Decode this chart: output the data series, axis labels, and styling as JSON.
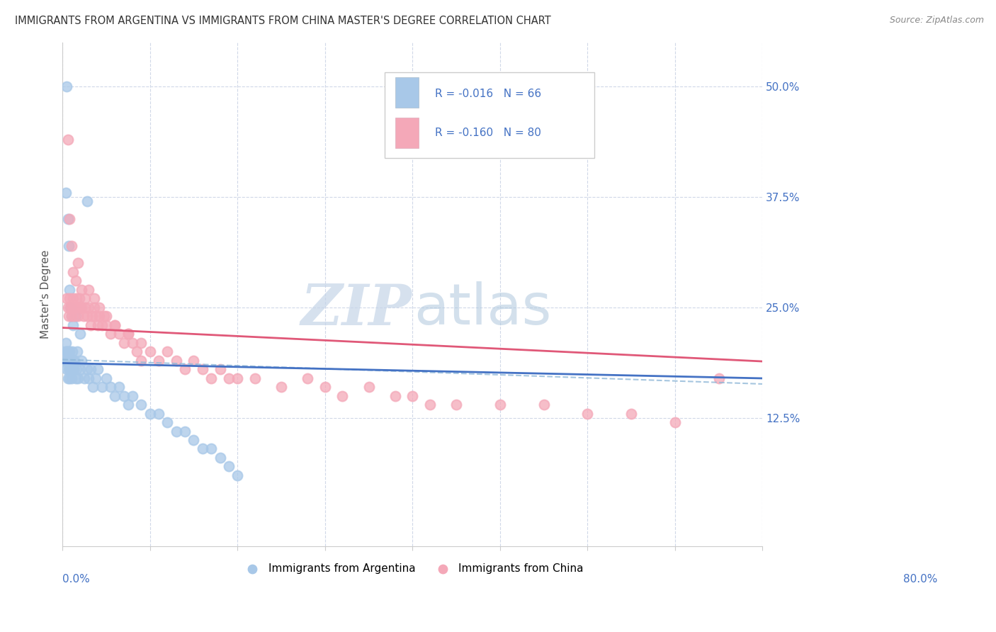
{
  "title": "IMMIGRANTS FROM ARGENTINA VS IMMIGRANTS FROM CHINA MASTER'S DEGREE CORRELATION CHART",
  "source": "Source: ZipAtlas.com",
  "ylabel": "Master's Degree",
  "ytick_values": [
    0.125,
    0.25,
    0.375,
    0.5
  ],
  "xlim": [
    0.0,
    0.8
  ],
  "ylim": [
    -0.02,
    0.55
  ],
  "argentina_color": "#a8c8e8",
  "china_color": "#f4a8b8",
  "argentina_line_color": "#4472c4",
  "china_line_color": "#e05878",
  "dash_line_color": "#90b8d8",
  "legend_text_color": "#4472c4",
  "argentina_x": [
    0.003,
    0.004,
    0.004,
    0.005,
    0.005,
    0.005,
    0.006,
    0.006,
    0.006,
    0.007,
    0.007,
    0.008,
    0.008,
    0.009,
    0.009,
    0.01,
    0.01,
    0.011,
    0.011,
    0.012,
    0.013,
    0.014,
    0.015,
    0.016,
    0.017,
    0.018,
    0.02,
    0.022,
    0.025,
    0.028,
    0.03,
    0.032,
    0.035,
    0.038,
    0.04,
    0.045,
    0.05,
    0.055,
    0.06,
    0.065,
    0.07,
    0.075,
    0.08,
    0.09,
    0.1,
    0.11,
    0.12,
    0.13,
    0.14,
    0.15,
    0.16,
    0.17,
    0.18,
    0.19,
    0.2,
    0.004,
    0.005,
    0.006,
    0.007,
    0.008,
    0.009,
    0.01,
    0.012,
    0.015,
    0.02,
    0.028
  ],
  "argentina_y": [
    0.19,
    0.2,
    0.21,
    0.18,
    0.19,
    0.2,
    0.17,
    0.19,
    0.2,
    0.18,
    0.19,
    0.17,
    0.2,
    0.18,
    0.19,
    0.17,
    0.19,
    0.18,
    0.2,
    0.19,
    0.18,
    0.19,
    0.17,
    0.18,
    0.2,
    0.17,
    0.18,
    0.19,
    0.17,
    0.18,
    0.17,
    0.18,
    0.16,
    0.17,
    0.18,
    0.16,
    0.17,
    0.16,
    0.15,
    0.16,
    0.15,
    0.14,
    0.15,
    0.14,
    0.13,
    0.13,
    0.12,
    0.11,
    0.11,
    0.1,
    0.09,
    0.09,
    0.08,
    0.07,
    0.06,
    0.38,
    0.5,
    0.35,
    0.32,
    0.27,
    0.25,
    0.24,
    0.23,
    0.24,
    0.22,
    0.37
  ],
  "china_x": [
    0.005,
    0.006,
    0.007,
    0.008,
    0.009,
    0.01,
    0.011,
    0.012,
    0.013,
    0.014,
    0.015,
    0.016,
    0.017,
    0.018,
    0.019,
    0.02,
    0.022,
    0.024,
    0.026,
    0.028,
    0.03,
    0.032,
    0.034,
    0.036,
    0.038,
    0.04,
    0.042,
    0.045,
    0.048,
    0.05,
    0.055,
    0.06,
    0.065,
    0.07,
    0.075,
    0.08,
    0.085,
    0.09,
    0.1,
    0.11,
    0.12,
    0.13,
    0.14,
    0.15,
    0.16,
    0.17,
    0.18,
    0.19,
    0.2,
    0.22,
    0.25,
    0.28,
    0.3,
    0.32,
    0.35,
    0.38,
    0.4,
    0.42,
    0.45,
    0.5,
    0.55,
    0.6,
    0.65,
    0.7,
    0.75,
    0.006,
    0.008,
    0.01,
    0.012,
    0.015,
    0.018,
    0.022,
    0.026,
    0.03,
    0.036,
    0.042,
    0.05,
    0.06,
    0.075,
    0.09
  ],
  "china_y": [
    0.26,
    0.25,
    0.24,
    0.26,
    0.25,
    0.24,
    0.25,
    0.26,
    0.25,
    0.24,
    0.25,
    0.26,
    0.25,
    0.24,
    0.26,
    0.25,
    0.25,
    0.24,
    0.25,
    0.24,
    0.25,
    0.23,
    0.24,
    0.25,
    0.24,
    0.23,
    0.24,
    0.23,
    0.24,
    0.23,
    0.22,
    0.23,
    0.22,
    0.21,
    0.22,
    0.21,
    0.2,
    0.21,
    0.2,
    0.19,
    0.2,
    0.19,
    0.18,
    0.19,
    0.18,
    0.17,
    0.18,
    0.17,
    0.17,
    0.17,
    0.16,
    0.17,
    0.16,
    0.15,
    0.16,
    0.15,
    0.15,
    0.14,
    0.14,
    0.14,
    0.14,
    0.13,
    0.13,
    0.12,
    0.17,
    0.44,
    0.35,
    0.32,
    0.29,
    0.28,
    0.3,
    0.27,
    0.26,
    0.27,
    0.26,
    0.25,
    0.24,
    0.23,
    0.22,
    0.19
  ]
}
